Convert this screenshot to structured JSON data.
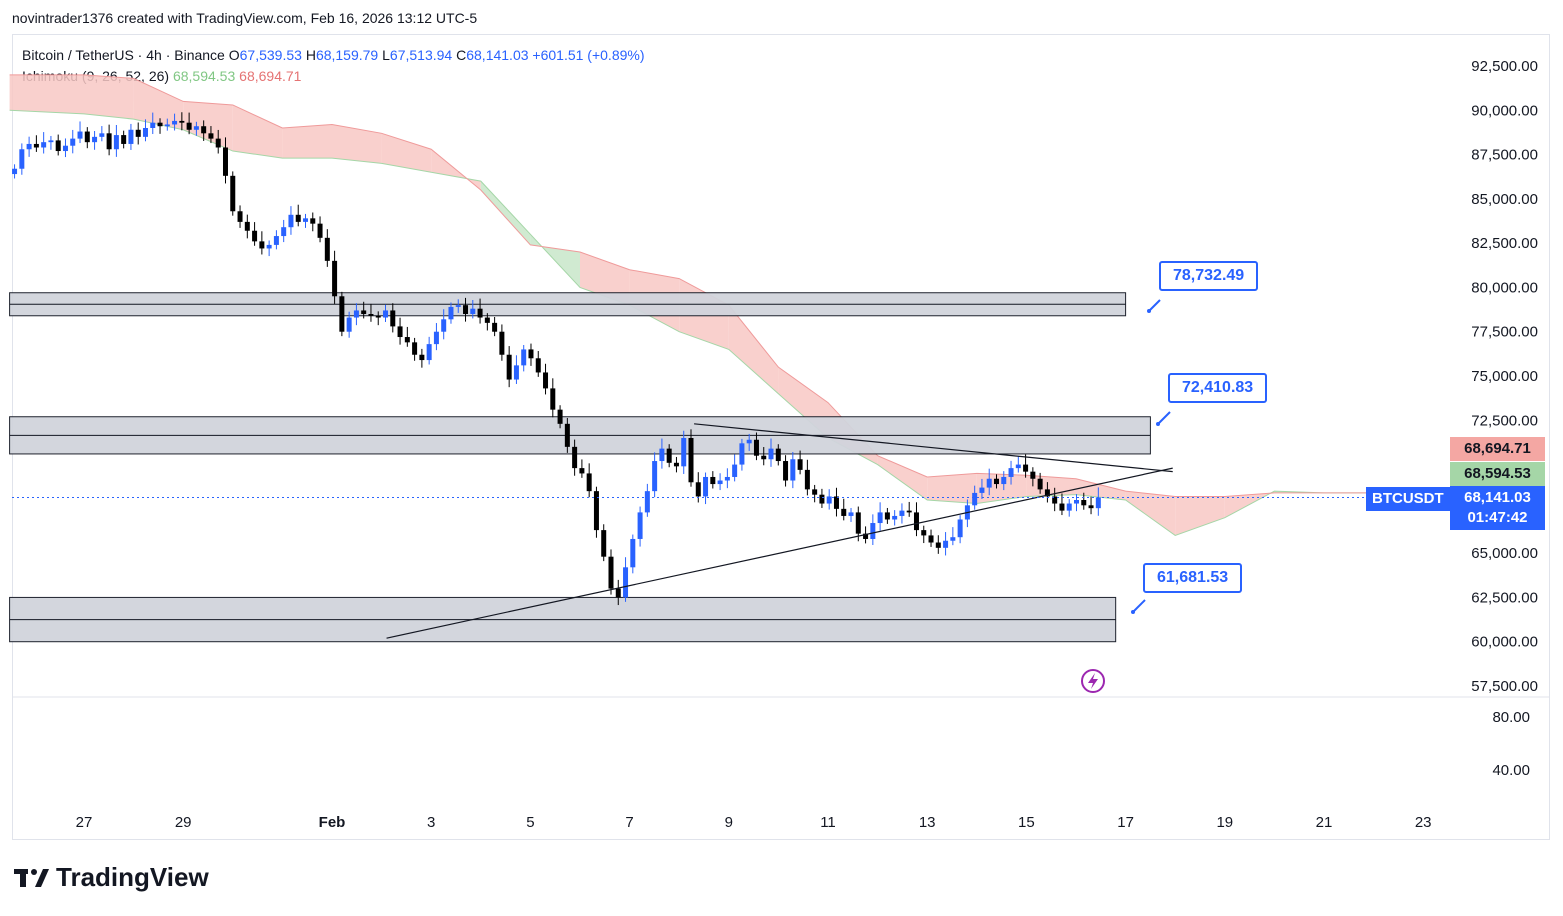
{
  "header": {
    "text": "novintrader1376 created with TradingView.com, Feb 16, 2026 13:12 UTC-5"
  },
  "legend": {
    "symbol": "Bitcoin / TetherUS · 4h · Binance",
    "o_label": "O",
    "o": "67,539.53",
    "h_label": "H",
    "h": "68,159.79",
    "l_label": "L",
    "l": "67,513.94",
    "c_label": "C",
    "c": "68,141.03",
    "change": "+601.51 (+0.89%)",
    "indicator": "Ichimoku (9, 26, 52, 26)",
    "ichi_a": "68,594.53",
    "ichi_b": "68,694.71"
  },
  "annotations": {
    "tag1": "78,732.49",
    "tag2": "72,410.83",
    "tag3": "61,681.53"
  },
  "price_tags": {
    "span_b": "68,694.71",
    "span_a": "68,594.53",
    "last": "68,141.03",
    "countdown": "01:47:42",
    "symbol": "BTCUSDT"
  },
  "footer": {
    "brand": "TradingView"
  },
  "colors": {
    "up": "#2962ff",
    "down": "#000000",
    "cloud_bear": "#f8c8c4",
    "cloud_bull": "#c8e6c9"
  },
  "chart_data": {
    "type": "candlestick",
    "title": "Bitcoin / TetherUS · 4h · Binance",
    "y_ticks": [
      "92,500.00",
      "90,000.00",
      "87,500.00",
      "85,000.00",
      "82,500.00",
      "80,000.00",
      "77,500.00",
      "75,000.00",
      "72,500.00",
      "65,000.00",
      "62,500.00",
      "60,000.00",
      "57,500.00"
    ],
    "y_tick_values": [
      92500,
      90000,
      87500,
      85000,
      82500,
      80000,
      77500,
      75000,
      72500,
      65000,
      62500,
      60000,
      57500
    ],
    "ylim": [
      57000,
      94500
    ],
    "x_ticks": [
      "27",
      "29",
      "Feb",
      "3",
      "5",
      "7",
      "9",
      "11",
      "13",
      "15",
      "17",
      "19",
      "21",
      "23"
    ],
    "x_tick_days": [
      -5,
      -3,
      0,
      2,
      4,
      6,
      8,
      10,
      12,
      14,
      16,
      18,
      20,
      22
    ],
    "osc_ticks": [
      "80.00",
      "40.00"
    ],
    "osc_tick_values": [
      80,
      40
    ],
    "zones": [
      {
        "low": 78400,
        "high": 79700,
        "from_day": -6.5,
        "to_day": 16.0
      },
      {
        "low": 70600,
        "high": 72700,
        "from_day": -6.5,
        "to_day": 16.5
      },
      {
        "low": 60000,
        "high": 62500,
        "from_day": -6.5,
        "to_day": 15.8
      }
    ],
    "trendlines": [
      {
        "from": [
          1.1,
          60200
        ],
        "to": [
          16.95,
          69800
        ]
      },
      {
        "from": [
          7.3,
          72300
        ],
        "to": [
          16.95,
          69600
        ]
      }
    ],
    "candles_4h_closes": [
      86700,
      87800,
      88100,
      87900,
      88200,
      88300,
      87700,
      88000,
      88400,
      88800,
      88200,
      88500,
      88700,
      87800,
      88600,
      88100,
      88900,
      88500,
      89000,
      89300,
      89100,
      89200,
      89400,
      89300,
      88900,
      89100,
      88700,
      88400,
      87900,
      86300,
      84300,
      83700,
      83200,
      82600,
      82200,
      82400,
      82900,
      83400,
      84100,
      83700,
      83900,
      83600,
      82800,
      81500,
      79500,
      77500,
      78300,
      78700,
      78500,
      78400,
      78300,
      78700,
      77800,
      77200,
      76900,
      76200,
      75900,
      76800,
      77500,
      78200,
      78900,
      79000,
      78500,
      78800,
      78300,
      78000,
      77500,
      76200,
      74800,
      75600,
      76500,
      76000,
      75200,
      74300,
      73100,
      72300,
      71000,
      69800,
      69500,
      68500,
      66300,
      64800,
      63000,
      62500,
      64200,
      65800,
      67300,
      68500,
      70200,
      70900,
      70100,
      69900,
      71500,
      69000,
      68200,
      69300,
      68900,
      69100,
      69300,
      70000,
      71200,
      71400,
      70500,
      70300,
      70900,
      70200,
      69100,
      70300,
      69700,
      68600,
      68300,
      67800,
      68200,
      67500,
      67100,
      67300,
      66100,
      65800,
      66700,
      67300,
      66900,
      67100,
      67400,
      67300,
      66300,
      66000,
      65600,
      65300,
      65700,
      65900,
      66900,
      67700,
      68400,
      68700,
      69200,
      68900,
      69300,
      69800,
      70000,
      69600,
      69200,
      68600,
      68200,
      67800,
      67400,
      67800,
      68000,
      67700,
      67539,
      68141
    ],
    "cloud": {
      "days": [
        -6.5,
        -5,
        -4,
        -3,
        -2,
        -1,
        0,
        1,
        2,
        3,
        4,
        5,
        6,
        7,
        8,
        9,
        10,
        11,
        12,
        13,
        14,
        15,
        16,
        17,
        18,
        19,
        20,
        21
      ],
      "span_a": [
        90000,
        89800,
        89500,
        88900,
        87700,
        87300,
        87300,
        87000,
        86500,
        86000,
        83000,
        80000,
        79000,
        77500,
        76500,
        74000,
        71500,
        70000,
        68000,
        67800,
        68200,
        68300,
        68000,
        66000,
        67000,
        68500,
        68400,
        68400
      ],
      "span_b": [
        92000,
        92000,
        91800,
        90500,
        90300,
        89000,
        89200,
        88700,
        87800,
        85500,
        82400,
        82000,
        81000,
        80500,
        79000,
        75500,
        73500,
        70500,
        69300,
        69500,
        69400,
        69200,
        68500,
        68200,
        68200,
        68400,
        68400,
        68400
      ]
    }
  }
}
